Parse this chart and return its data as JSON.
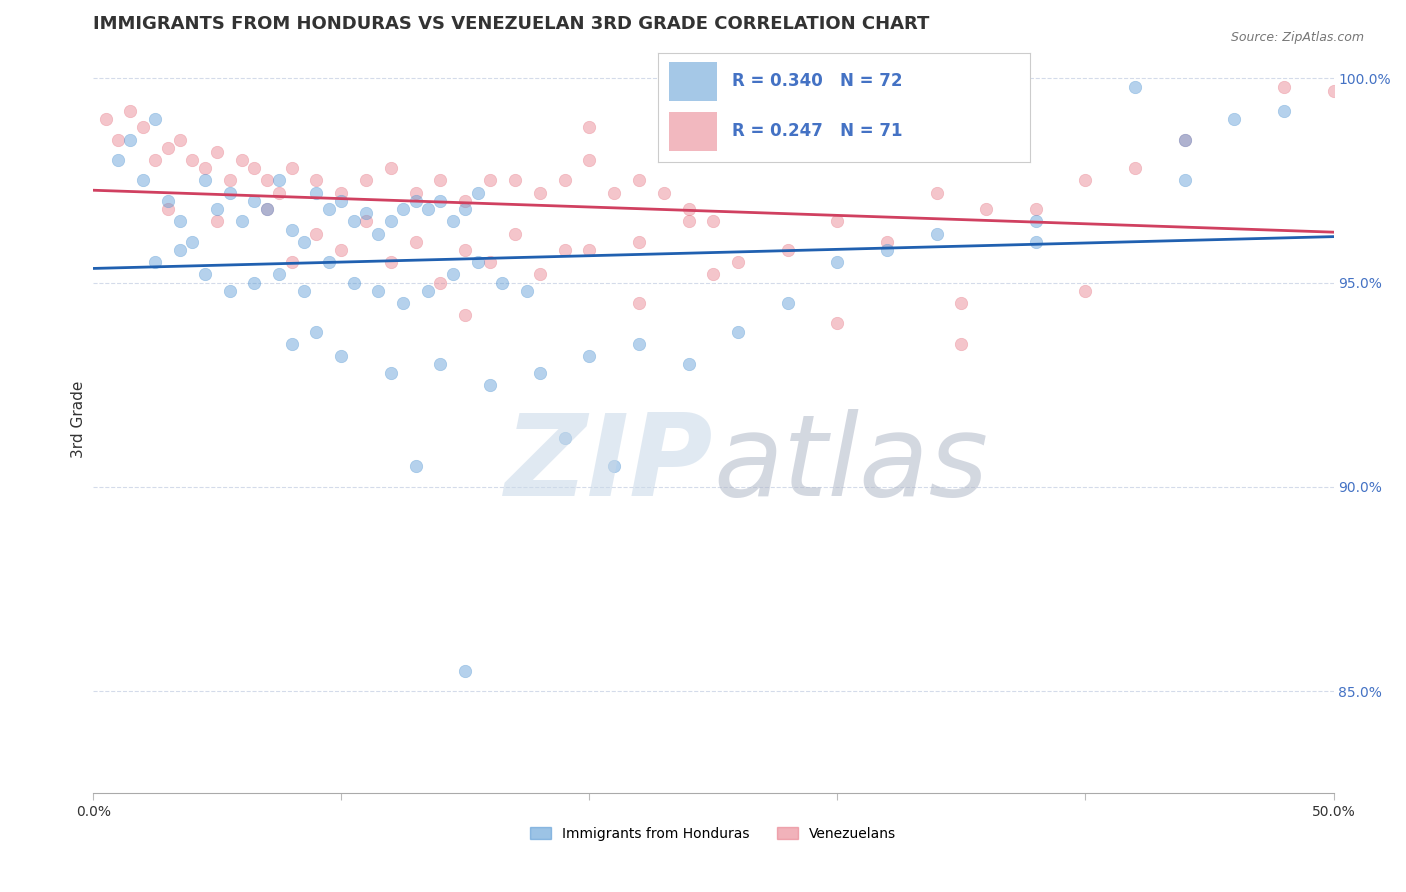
{
  "title": "IMMIGRANTS FROM HONDURAS VS VENEZUELAN 3RD GRADE CORRELATION CHART",
  "source_text": "Source: ZipAtlas.com",
  "ylabel": "3rd Grade",
  "legend_entries": [
    {
      "label": "Immigrants from Honduras",
      "R": 0.34,
      "N": 72
    },
    {
      "label": "Venezuelans",
      "R": 0.247,
      "N": 71
    }
  ],
  "xlim": [
    0.0,
    0.5
  ],
  "ylim": [
    0.825,
    1.008
  ],
  "yticks": [
    0.85,
    0.9,
    0.95,
    1.0
  ],
  "ytick_labels": [
    "85.0%",
    "90.0%",
    "95.0%",
    "100.0%"
  ],
  "xticks": [
    0.0,
    0.1,
    0.2,
    0.3,
    0.4,
    0.5
  ],
  "xtick_labels": [
    "0.0%",
    "",
    "",
    "",
    "",
    "50.0%"
  ],
  "blue_scatter_x": [
    0.01,
    0.015,
    0.02,
    0.025,
    0.03,
    0.035,
    0.04,
    0.045,
    0.05,
    0.055,
    0.06,
    0.065,
    0.07,
    0.075,
    0.08,
    0.085,
    0.09,
    0.095,
    0.1,
    0.105,
    0.11,
    0.115,
    0.12,
    0.125,
    0.13,
    0.135,
    0.14,
    0.145,
    0.15,
    0.155,
    0.025,
    0.035,
    0.045,
    0.055,
    0.065,
    0.075,
    0.085,
    0.095,
    0.105,
    0.115,
    0.125,
    0.135,
    0.145,
    0.155,
    0.165,
    0.175,
    0.08,
    0.09,
    0.1,
    0.12,
    0.14,
    0.16,
    0.18,
    0.2,
    0.22,
    0.24,
    0.26,
    0.28,
    0.3,
    0.32,
    0.34,
    0.38,
    0.42,
    0.44,
    0.46,
    0.38,
    0.44,
    0.48,
    0.19,
    0.21,
    0.13,
    0.15
  ],
  "blue_scatter_y": [
    0.98,
    0.985,
    0.975,
    0.99,
    0.97,
    0.965,
    0.96,
    0.975,
    0.968,
    0.972,
    0.965,
    0.97,
    0.968,
    0.975,
    0.963,
    0.96,
    0.972,
    0.968,
    0.97,
    0.965,
    0.967,
    0.962,
    0.965,
    0.968,
    0.97,
    0.968,
    0.97,
    0.965,
    0.968,
    0.972,
    0.955,
    0.958,
    0.952,
    0.948,
    0.95,
    0.952,
    0.948,
    0.955,
    0.95,
    0.948,
    0.945,
    0.948,
    0.952,
    0.955,
    0.95,
    0.948,
    0.935,
    0.938,
    0.932,
    0.928,
    0.93,
    0.925,
    0.928,
    0.932,
    0.935,
    0.93,
    0.938,
    0.945,
    0.955,
    0.958,
    0.962,
    0.965,
    0.998,
    0.975,
    0.99,
    0.96,
    0.985,
    0.992,
    0.912,
    0.905,
    0.905,
    0.855
  ],
  "pink_scatter_x": [
    0.005,
    0.01,
    0.015,
    0.02,
    0.025,
    0.03,
    0.035,
    0.04,
    0.045,
    0.05,
    0.055,
    0.06,
    0.065,
    0.07,
    0.075,
    0.08,
    0.09,
    0.1,
    0.11,
    0.12,
    0.13,
    0.14,
    0.15,
    0.16,
    0.17,
    0.18,
    0.19,
    0.2,
    0.21,
    0.22,
    0.23,
    0.24,
    0.25,
    0.03,
    0.05,
    0.07,
    0.09,
    0.11,
    0.13,
    0.15,
    0.17,
    0.19,
    0.08,
    0.1,
    0.12,
    0.14,
    0.16,
    0.18,
    0.2,
    0.22,
    0.24,
    0.26,
    0.28,
    0.3,
    0.32,
    0.34,
    0.36,
    0.38,
    0.4,
    0.42,
    0.44,
    0.3,
    0.35,
    0.22,
    0.4,
    0.48,
    0.5,
    0.15,
    0.25,
    0.35,
    0.2
  ],
  "pink_scatter_y": [
    0.99,
    0.985,
    0.992,
    0.988,
    0.98,
    0.983,
    0.985,
    0.98,
    0.978,
    0.982,
    0.975,
    0.98,
    0.978,
    0.975,
    0.972,
    0.978,
    0.975,
    0.972,
    0.975,
    0.978,
    0.972,
    0.975,
    0.97,
    0.975,
    0.975,
    0.972,
    0.975,
    0.98,
    0.972,
    0.975,
    0.972,
    0.968,
    0.965,
    0.968,
    0.965,
    0.968,
    0.962,
    0.965,
    0.96,
    0.958,
    0.962,
    0.958,
    0.955,
    0.958,
    0.955,
    0.95,
    0.955,
    0.952,
    0.958,
    0.96,
    0.965,
    0.955,
    0.958,
    0.965,
    0.96,
    0.972,
    0.968,
    0.968,
    0.975,
    0.978,
    0.985,
    0.94,
    0.935,
    0.945,
    0.948,
    0.998,
    0.997,
    0.942,
    0.952,
    0.945,
    0.988
  ],
  "title_fontsize": 13,
  "axis_label_fontsize": 11,
  "tick_fontsize": 10,
  "marker_size": 80,
  "marker_alpha": 0.45,
  "line_width": 2.0,
  "blue_color": "#5b9bd5",
  "pink_color": "#e87f8c",
  "blue_line_color": "#2060b0",
  "pink_line_color": "#d04060",
  "grid_color": "#d0d8e8",
  "watermark_zip_color": "#c8d8e8",
  "watermark_atlas_color": "#b0b8c8",
  "watermark_alpha": 0.55,
  "legend_R_N_color": "#4472c4",
  "right_tick_color": "#4472c4"
}
